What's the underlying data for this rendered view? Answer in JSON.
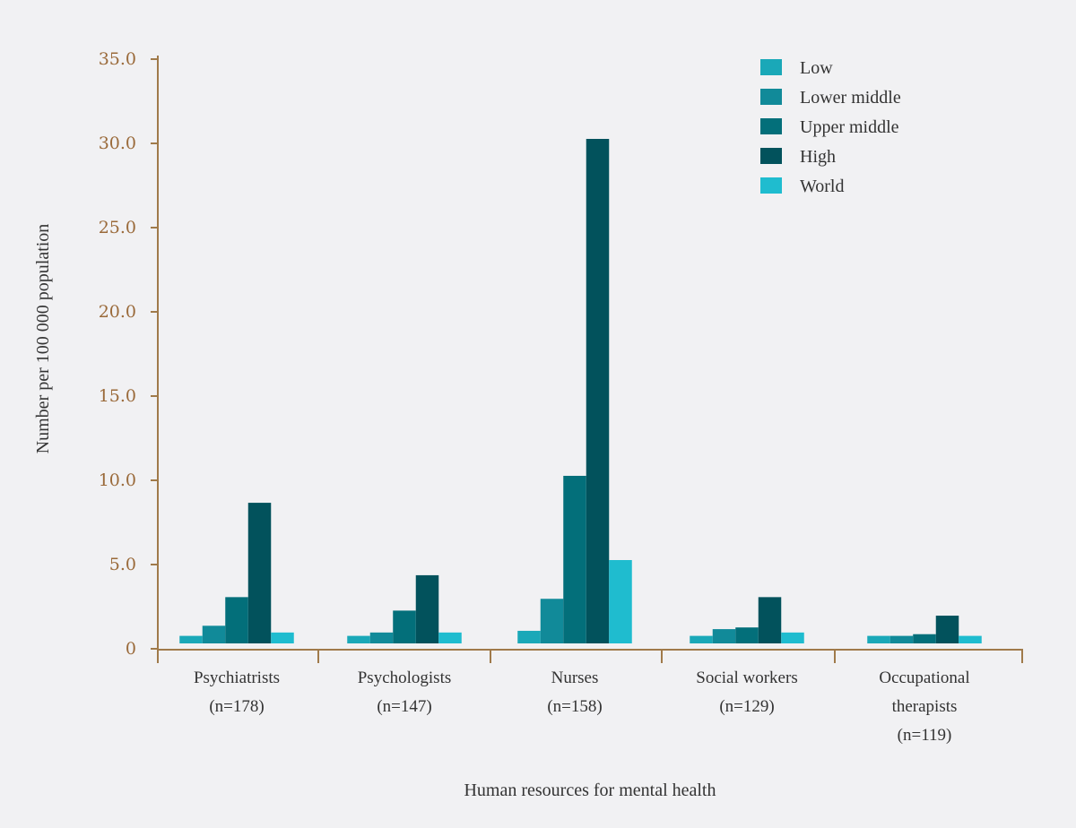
{
  "chart_data": {
    "type": "bar",
    "title": "",
    "xlabel": "Human resources for mental health",
    "ylabel": "Number per 100 000 population",
    "ylim": [
      0,
      35
    ],
    "yticks": [
      "0",
      "5.0",
      "10.0",
      "15.0",
      "20.0",
      "25.0",
      "30.0",
      "35.0"
    ],
    "ytick_values": [
      0,
      5,
      10,
      15,
      20,
      25,
      30,
      35
    ],
    "categories": [
      [
        "Psychiatrists",
        "(n=178)"
      ],
      [
        "Psychologists",
        "(n=147)"
      ],
      [
        "Nurses",
        "(n=158)"
      ],
      [
        "Social workers",
        "(n=129)"
      ],
      [
        "Occupational",
        "therapists",
        "(n=119)"
      ]
    ],
    "legend_position": "top-right",
    "series": [
      {
        "name": "Low",
        "color": "#1aa8b8",
        "values": [
          0.5,
          0.5,
          0.8,
          0.5,
          0.5
        ]
      },
      {
        "name": "Lower middle",
        "color": "#118a99",
        "values": [
          1.1,
          0.7,
          2.7,
          0.9,
          0.5
        ]
      },
      {
        "name": "Upper middle",
        "color": "#036f7a",
        "values": [
          2.8,
          2.0,
          10.0,
          1.0,
          0.6
        ]
      },
      {
        "name": "High",
        "color": "#02525c",
        "values": [
          8.4,
          4.1,
          30.0,
          2.8,
          1.7
        ]
      },
      {
        "name": "World",
        "color": "#1fbccf",
        "values": [
          0.7,
          0.7,
          5.0,
          0.7,
          0.5
        ]
      }
    ],
    "axis_color": "#a07a4a"
  }
}
